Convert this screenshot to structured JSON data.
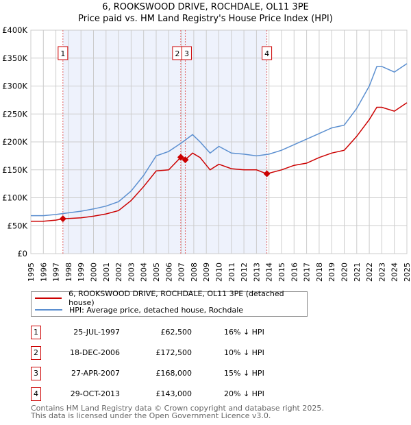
{
  "title_line1": "6, ROOKSWOOD DRIVE, ROCHDALE, OL11 3PE",
  "title_line2": "Price paid vs. HM Land Registry's House Price Index (HPI)",
  "chart_data": {
    "type": "line",
    "title": "6, ROOKSWOOD DRIVE, ROCHDALE, OL11 3PE — Price paid vs. HM Land Registry's House Price Index (HPI)",
    "xlim": [
      1995,
      2025
    ],
    "ylim": [
      0,
      400000
    ],
    "yticks": [
      0,
      50000,
      100000,
      150000,
      200000,
      250000,
      300000,
      350000,
      400000
    ],
    "ytick_labels": [
      "£0",
      "£50K",
      "£100K",
      "£150K",
      "£200K",
      "£250K",
      "£300K",
      "£350K",
      "£400K"
    ],
    "xticks": [
      "1995",
      "1996",
      "1997",
      "1998",
      "1999",
      "2000",
      "2001",
      "2002",
      "2003",
      "2004",
      "2005",
      "2006",
      "2007",
      "2008",
      "2009",
      "2010",
      "2011",
      "2012",
      "2013",
      "2014",
      "2015",
      "2016",
      "2017",
      "2018",
      "2019",
      "2020",
      "2021",
      "2022",
      "2023",
      "2024",
      "2025"
    ],
    "grid": true,
    "colors": {
      "property": "#cc0000",
      "hpi": "#5b8fd0",
      "shade": "#eef2fc",
      "marker_line": "#e06060"
    },
    "series": [
      {
        "name": "6, ROOKSWOOD DRIVE, ROCHDALE, OL11 3PE (detached house)",
        "key": "property",
        "x": [
          1995,
          1996,
          1997,
          1997.56,
          1998,
          1999,
          2000,
          2001,
          2002,
          2003,
          2004,
          2005,
          2006,
          2006.96,
          2007.32,
          2007.9,
          2008.5,
          2009.3,
          2010,
          2011,
          2012,
          2013,
          2013.83,
          2015,
          2016,
          2017,
          2018,
          2019,
          2020,
          2021,
          2022,
          2022.6,
          2023,
          2024,
          2025
        ],
        "y": [
          58000,
          58000,
          60000,
          62500,
          63000,
          64000,
          67000,
          71000,
          77000,
          95000,
          120000,
          148000,
          150000,
          172500,
          168000,
          180000,
          172000,
          150000,
          160000,
          152000,
          150000,
          150000,
          143000,
          150000,
          158000,
          162000,
          172000,
          180000,
          185000,
          210000,
          240000,
          262000,
          262000,
          255000,
          270000
        ]
      },
      {
        "name": "HPI: Average price, detached house, Rochdale",
        "key": "hpi",
        "x": [
          1995,
          1996,
          1997,
          1998,
          1999,
          2000,
          2001,
          2002,
          2003,
          2004,
          2005,
          2006,
          2007,
          2007.9,
          2008.5,
          2009.3,
          2010,
          2011,
          2012,
          2013,
          2014,
          2015,
          2016,
          2017,
          2018,
          2019,
          2020,
          2021,
          2022,
          2022.6,
          2023,
          2024,
          2025
        ],
        "y": [
          68000,
          68000,
          70000,
          73000,
          76000,
          80000,
          85000,
          93000,
          112000,
          140000,
          175000,
          183000,
          198000,
          213000,
          200000,
          180000,
          192000,
          180000,
          178000,
          175000,
          178000,
          185000,
          195000,
          205000,
          215000,
          225000,
          230000,
          260000,
          300000,
          335000,
          335000,
          325000,
          340000
        ]
      }
    ],
    "sales": [
      {
        "label": "1",
        "x": 1997.56,
        "y": 62500,
        "date": "25-JUL-1997",
        "price": "£62,500",
        "hpi": "16% ↓ HPI"
      },
      {
        "label": "2",
        "x": 2006.96,
        "y": 172500,
        "date": "18-DEC-2006",
        "price": "£172,500",
        "hpi": "10% ↓ HPI"
      },
      {
        "label": "3",
        "x": 2007.32,
        "y": 168000,
        "date": "27-APR-2007",
        "price": "£168,000",
        "hpi": "15% ↓ HPI"
      },
      {
        "label": "4",
        "x": 2013.83,
        "y": 143000,
        "date": "29-OCT-2013",
        "price": "£143,000",
        "hpi": "20% ↓ HPI"
      }
    ]
  },
  "legend": {
    "property": "6, ROOKSWOOD DRIVE, ROCHDALE, OL11 3PE (detached house)",
    "hpi": "HPI: Average price, detached house, Rochdale"
  },
  "footer": {
    "line1": "Contains HM Land Registry data © Crown copyright and database right 2025.",
    "line2": "This data is licensed under the Open Government Licence v3.0."
  }
}
